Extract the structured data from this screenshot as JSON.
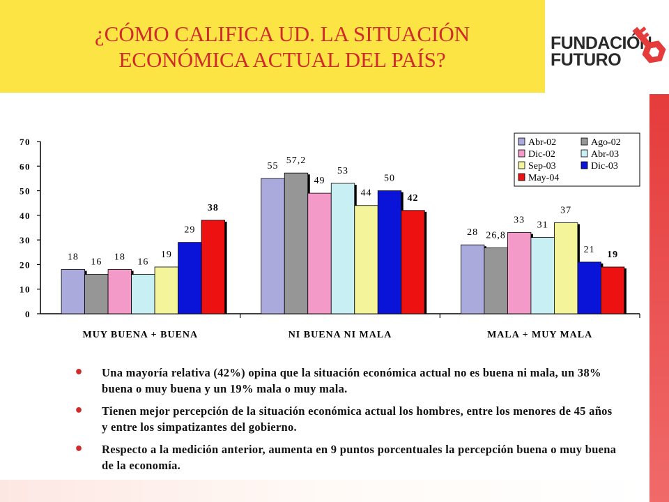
{
  "slide": {
    "title_line1": "¿CÓMO CALIFICA UD. LA SITUACIÓN",
    "title_line2": "ECONÓMICA ACTUAL DEL PAÍS?",
    "logo_line1": "FUNDACIÓN",
    "logo_line2": "FUTURO",
    "bullets": [
      "Una mayoría relativa (42%) opina que la situación económica actual no es buena ni mala, un 38% buena o muy buena y un 19% mala o muy mala.",
      "Tienen mejor percepción de la situación económica actual los hombres, entre los menores de 45 años y entre los simpatizantes del gobierno.",
      "Respecto a la medición anterior, aumenta en 9 puntos porcentuales la percepción buena o muy buena de la economía."
    ]
  },
  "colors": {
    "title_band": "#fde445",
    "title_text": "#d12a2a",
    "accent_red": "#e53b3b"
  },
  "chart_data": {
    "type": "bar",
    "categories": [
      "MUY BUENA + BUENA",
      "NI BUENA NI MALA",
      "MALA + MUY MALA"
    ],
    "ylim": [
      0,
      70
    ],
    "yticks": [
      0,
      10,
      20,
      30,
      40,
      50,
      60,
      70
    ],
    "grid": false,
    "legend_position": "top-right",
    "series": [
      {
        "name": "Abr-02",
        "color": "#aaaadd",
        "values": [
          18,
          55,
          28
        ],
        "labels": [
          "18",
          "55",
          "28"
        ],
        "bold": false
      },
      {
        "name": "Ago-02",
        "color": "#969696",
        "values": [
          16,
          57.2,
          26.8
        ],
        "labels": [
          "16",
          "57,2",
          "26,8"
        ],
        "bold": false
      },
      {
        "name": "Dic-02",
        "color": "#f49ac8",
        "values": [
          18,
          49,
          33
        ],
        "labels": [
          "18",
          "49",
          "33"
        ],
        "bold": false
      },
      {
        "name": "Abr-03",
        "color": "#c8f0f4",
        "values": [
          16,
          53,
          31
        ],
        "labels": [
          "16",
          "53",
          "31"
        ],
        "bold": false
      },
      {
        "name": "Sep-03",
        "color": "#f4f49a",
        "values": [
          19,
          44,
          37
        ],
        "labels": [
          "19",
          "44",
          "37"
        ],
        "bold": false
      },
      {
        "name": "Dic-03",
        "color": "#0a14d8",
        "values": [
          29,
          50,
          21
        ],
        "labels": [
          "29",
          "50",
          "21"
        ],
        "bold": false
      },
      {
        "name": "May-04",
        "color": "#ee1111",
        "values": [
          38,
          42,
          19
        ],
        "labels": [
          "38",
          "42",
          "19"
        ],
        "bold": true
      }
    ]
  }
}
